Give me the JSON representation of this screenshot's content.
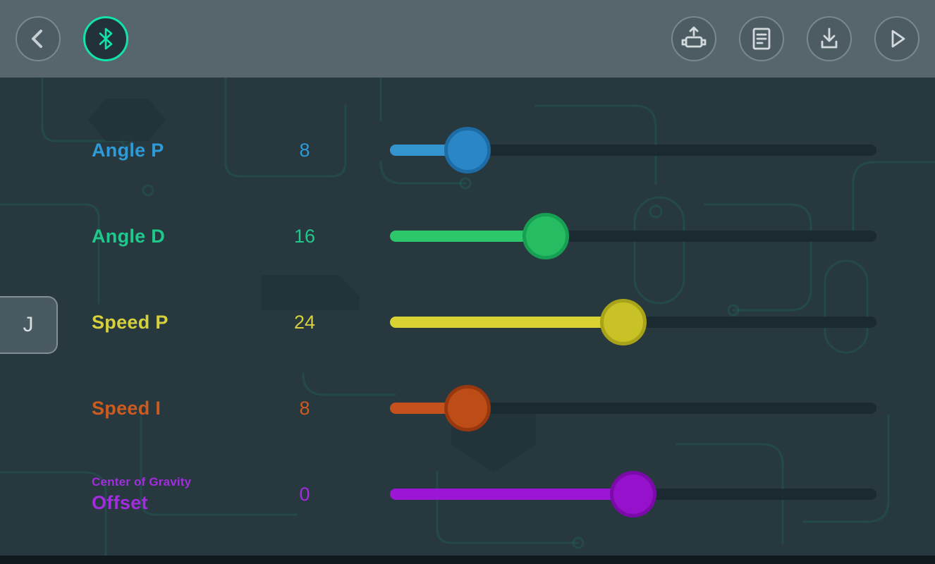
{
  "colors": {
    "header_bg": "#57666d",
    "background": "#27393f",
    "track": "#1b2930",
    "accent_teal": "#13e3a8",
    "icon_stroke": "#d3dadd"
  },
  "header": {
    "icons": [
      {
        "name": "back-icon"
      },
      {
        "name": "bluetooth-icon"
      },
      {
        "name": "upload-to-device-icon"
      },
      {
        "name": "log-document-icon"
      },
      {
        "name": "download-icon"
      },
      {
        "name": "play-icon"
      }
    ]
  },
  "side_tab": {
    "label": "J"
  },
  "sliders": [
    {
      "label": "Angle P",
      "sublabel": "",
      "value": 8,
      "percent": 16,
      "label_color": "#2e9bd8",
      "fill_color": "#3494d0",
      "knob_color": "#2a86c6",
      "knob_border": "#1e6ca6"
    },
    {
      "label": "Angle D",
      "sublabel": "",
      "value": 16,
      "percent": 32,
      "label_color": "#1fc98c",
      "fill_color": "#2bc76a",
      "knob_color": "#26bd62",
      "knob_border": "#17a053"
    },
    {
      "label": "Speed P",
      "sublabel": "",
      "value": 24,
      "percent": 48,
      "label_color": "#d6d03b",
      "fill_color": "#d8d233",
      "knob_color": "#c8c226",
      "knob_border": "#a8a318"
    },
    {
      "label": "Speed I",
      "sublabel": "",
      "value": 8,
      "percent": 16,
      "label_color": "#cd5a1e",
      "fill_color": "#c5521c",
      "knob_color": "#bc4d17",
      "knob_border": "#99380e"
    },
    {
      "label": "Offset",
      "sublabel": "Center of Gravity",
      "value": 0,
      "percent": 50,
      "label_color": "#a42ce0",
      "fill_color": "#9c16d6",
      "knob_color": "#9511cc",
      "knob_border": "#7a0ba8"
    }
  ]
}
